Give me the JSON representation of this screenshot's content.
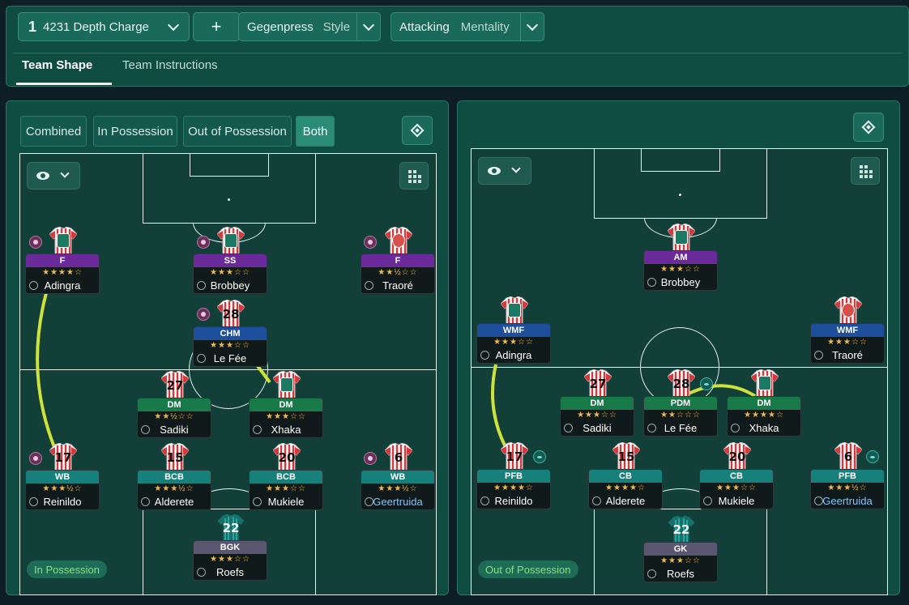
{
  "tactic": {
    "number": "1",
    "name": "4231 Depth Charge",
    "add_label": "+"
  },
  "style": {
    "value": "Gegenpress",
    "label": "Style"
  },
  "mentality": {
    "value": "Attacking",
    "label": "Mentality"
  },
  "tabs": [
    "Team Shape",
    "Team Instructions"
  ],
  "segments": [
    "Combined",
    "In Possession",
    "Out of Possession",
    "Both"
  ],
  "left_panel": {
    "badge": "In Possession",
    "players": [
      {
        "id": "lf",
        "role": "F",
        "stars": "★★★★☆",
        "name": "Adingra",
        "kit": "crest",
        "color": "purple"
      },
      {
        "id": "ss",
        "role": "SS",
        "stars": "★★★☆☆",
        "name": "Brobbey",
        "kit": "crest",
        "color": "purple"
      },
      {
        "id": "rf",
        "role": "F",
        "stars": "★★½☆☆",
        "name": "Traoré",
        "kit": "red",
        "color": "purple"
      },
      {
        "id": "chm",
        "role": "CHM",
        "stars": "★★★☆☆",
        "name": "Le Fée",
        "kit": "28",
        "color": "blue"
      },
      {
        "id": "dm1",
        "role": "DM",
        "stars": "★★½☆☆",
        "name": "Sadiki",
        "kit": "27",
        "color": "green"
      },
      {
        "id": "dm2",
        "role": "DM",
        "stars": "★★★☆☆",
        "name": "Xhaka",
        "kit": "crest",
        "color": "green"
      },
      {
        "id": "lwb",
        "role": "WB",
        "stars": "★★★½☆",
        "name": "Reinildo",
        "kit": "17",
        "color": "teal"
      },
      {
        "id": "bcb1",
        "role": "BCB",
        "stars": "★★★½☆",
        "name": "Alderete",
        "kit": "15",
        "color": "teal"
      },
      {
        "id": "bcb2",
        "role": "BCB",
        "stars": "★★★☆☆",
        "name": "Mukiele",
        "kit": "20",
        "color": "teal"
      },
      {
        "id": "rwb",
        "role": "WB",
        "stars": "★★★½☆",
        "name": "Geertruida",
        "kit": "6",
        "color": "teal",
        "blue": true
      },
      {
        "id": "gk",
        "role": "BGK",
        "stars": "★★★☆☆",
        "name": "Roefs",
        "kit": "22",
        "color": "grey",
        "gk": true
      }
    ]
  },
  "right_panel": {
    "badge": "Out of Possession",
    "players": [
      {
        "id": "am",
        "role": "AM",
        "stars": "★★★☆☆",
        "name": "Brobbey",
        "kit": "crest",
        "color": "purple"
      },
      {
        "id": "lwmf",
        "role": "WMF",
        "stars": "★★★☆☆",
        "name": "Adingra",
        "kit": "crest",
        "color": "blue"
      },
      {
        "id": "rwmf",
        "role": "WMF",
        "stars": "★★★☆☆",
        "name": "Traoré",
        "kit": "red",
        "color": "blue"
      },
      {
        "id": "dm1",
        "role": "DM",
        "stars": "★★★☆☆",
        "name": "Sadiki",
        "kit": "27",
        "color": "green"
      },
      {
        "id": "pdm",
        "role": "PDM",
        "stars": "★★☆☆☆",
        "name": "Le Fée",
        "kit": "28",
        "color": "green"
      },
      {
        "id": "dm2",
        "role": "DM",
        "stars": "★★★★☆",
        "name": "Xhaka",
        "kit": "crest",
        "color": "green"
      },
      {
        "id": "lpfb",
        "role": "PFB",
        "stars": "★★★★☆",
        "name": "Reinildo",
        "kit": "17",
        "color": "teal"
      },
      {
        "id": "cb1",
        "role": "CB",
        "stars": "★★★★☆",
        "name": "Alderete",
        "kit": "15",
        "color": "teal"
      },
      {
        "id": "cb2",
        "role": "CB",
        "stars": "★★★☆☆",
        "name": "Mukiele",
        "kit": "20",
        "color": "teal"
      },
      {
        "id": "rpfb",
        "role": "PFB",
        "stars": "★★★½☆",
        "name": "Geertruida",
        "kit": "6",
        "color": "teal",
        "blue": true
      },
      {
        "id": "gk",
        "role": "GK",
        "stars": "★★★☆☆",
        "name": "Roefs",
        "kit": "22",
        "color": "grey",
        "gk": true
      }
    ]
  },
  "colors": {
    "accent": "#2a8b77",
    "link": "#cfe23a",
    "purple": "#6a2a9a",
    "blue": "#1d4f9c",
    "green": "#187a48",
    "teal": "#17807a"
  }
}
